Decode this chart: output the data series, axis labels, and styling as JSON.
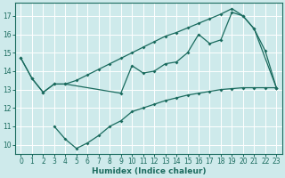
{
  "x_all": [
    0,
    1,
    2,
    3,
    4,
    5,
    6,
    7,
    8,
    9,
    10,
    11,
    12,
    13,
    14,
    15,
    16,
    17,
    18,
    19,
    20,
    21,
    22,
    23
  ],
  "line_top": [
    14.7,
    13.6,
    12.85,
    13.3,
    13.3,
    13.5,
    13.8,
    14.1,
    14.4,
    14.7,
    15.0,
    15.3,
    15.6,
    15.9,
    16.1,
    16.35,
    16.6,
    16.85,
    17.1,
    17.4,
    17.0,
    16.3,
    15.1,
    13.1
  ],
  "line_mid_x": [
    0,
    1,
    2,
    3,
    4,
    9,
    10,
    11,
    12,
    13,
    14,
    15,
    16,
    17,
    18,
    19,
    20,
    21,
    23
  ],
  "line_mid_y": [
    14.7,
    13.6,
    12.85,
    13.3,
    13.3,
    12.8,
    14.3,
    13.9,
    14.0,
    14.4,
    14.5,
    15.0,
    16.0,
    15.5,
    15.7,
    17.2,
    17.0,
    16.3,
    13.1
  ],
  "line_bot_x": [
    3,
    4,
    5,
    6,
    7,
    8,
    9,
    10,
    11,
    12,
    13,
    14,
    15,
    16,
    17,
    18,
    19,
    20,
    21,
    22,
    23
  ],
  "line_bot_y": [
    11.0,
    10.3,
    9.8,
    10.1,
    10.5,
    11.0,
    11.3,
    11.8,
    12.0,
    12.2,
    12.4,
    12.55,
    12.7,
    12.8,
    12.9,
    13.0,
    13.05,
    13.1,
    13.1,
    13.1,
    13.1
  ],
  "color": "#1a6b5e",
  "bgcolor": "#ceeaeb",
  "xlabel": "Humidex (Indice chaleur)",
  "ylim": [
    9.5,
    17.7
  ],
  "xlim": [
    -0.5,
    23.5
  ],
  "yticks": [
    10,
    11,
    12,
    13,
    14,
    15,
    16,
    17
  ],
  "xticks": [
    0,
    1,
    2,
    3,
    4,
    5,
    6,
    7,
    8,
    9,
    10,
    11,
    12,
    13,
    14,
    15,
    16,
    17,
    18,
    19,
    20,
    21,
    22,
    23
  ]
}
